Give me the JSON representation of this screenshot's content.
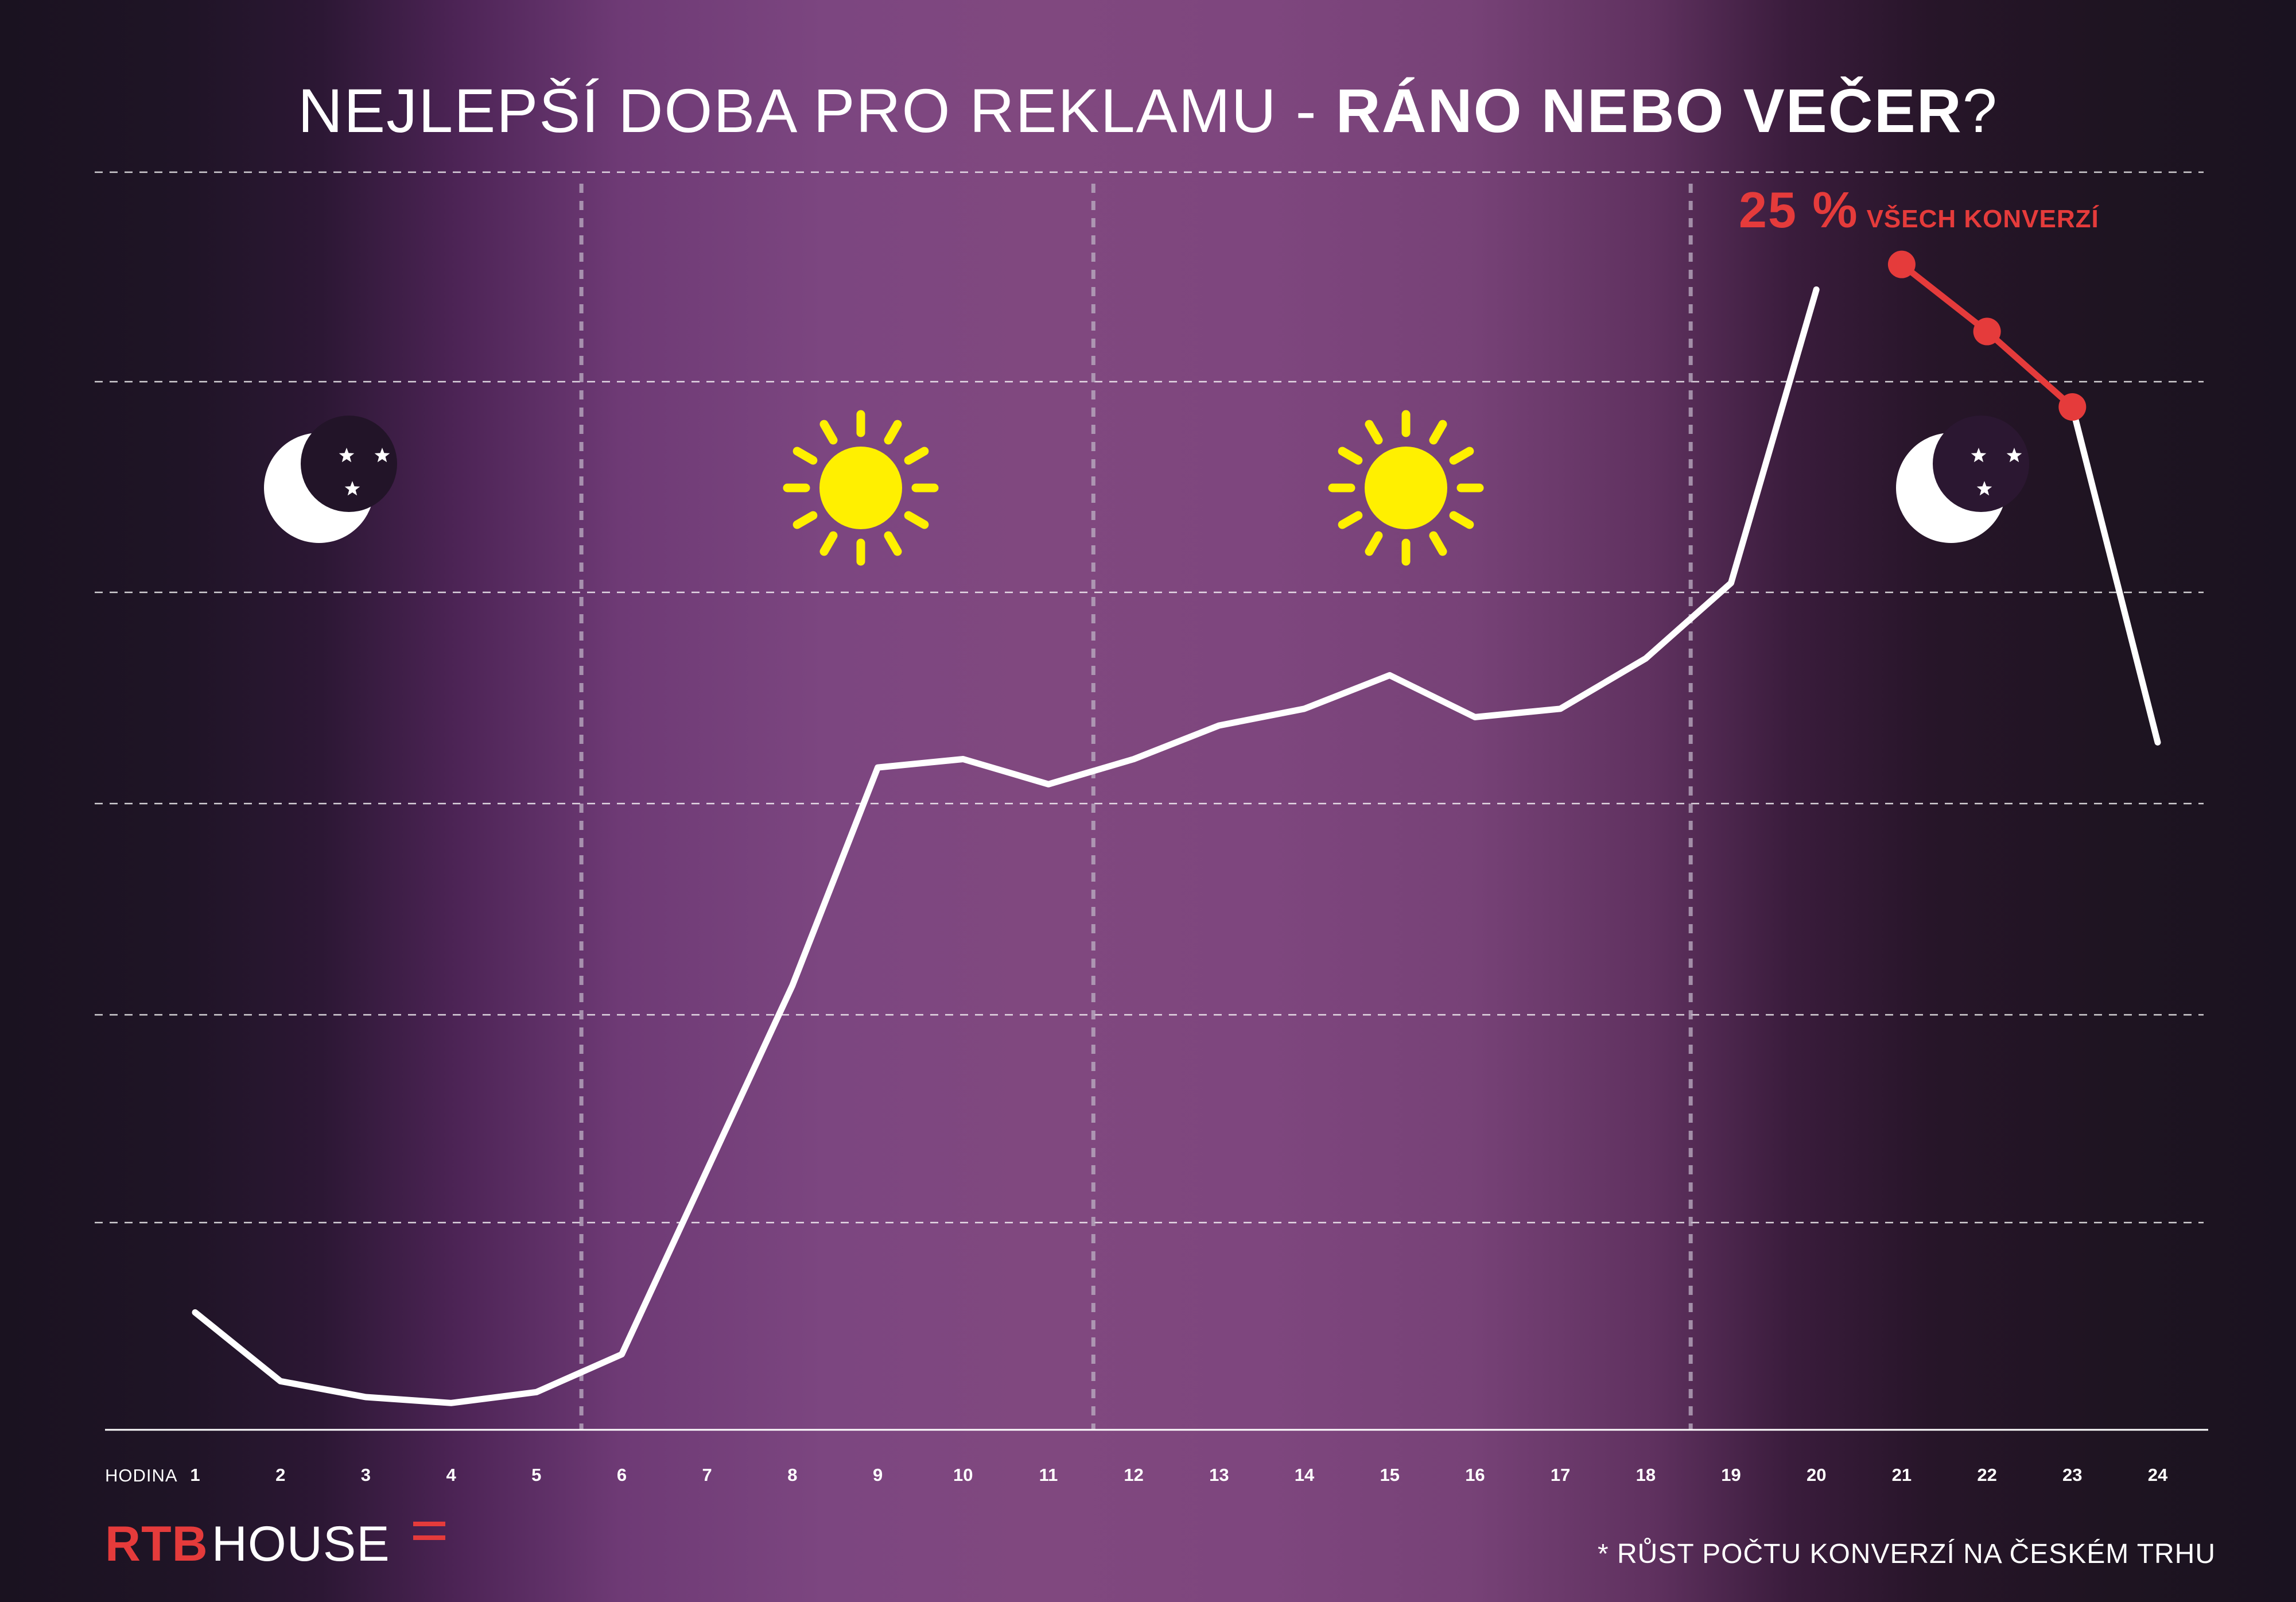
{
  "title": {
    "light": "NEJLEPŠÍ DOBA PRO REKLAMU - ",
    "bold": "RÁNO NEBO VEČER",
    "end": "?"
  },
  "peak_label": {
    "value": "25 %",
    "text": "VŠECH KONVERZÍ"
  },
  "x_caption": "HODINA",
  "footnote": "* RŮST POČTU KONVERZÍ NA ČESKÉM TRHU",
  "logo": {
    "rtb": "RTB",
    "house": "HOUSE"
  },
  "colors": {
    "line": "#ffffff",
    "highlight": "#e53b3b",
    "sun": "#fff000",
    "grid": "#ffffff"
  },
  "icons": [
    "moon-stars-icon",
    "sun-icon",
    "sun-icon",
    "moon-stars-icon"
  ],
  "chart_data": {
    "type": "line",
    "xlabel": "HODINA",
    "ylabel": "",
    "x": [
      "1",
      "2",
      "3",
      "4",
      "5",
      "6",
      "7",
      "8",
      "9",
      "10",
      "11",
      "12",
      "13",
      "14",
      "15",
      "16",
      "17",
      "18",
      "19",
      "20",
      "21",
      "22",
      "23",
      "24"
    ],
    "series": [
      {
        "values": [
          14.0,
          5.8,
          3.9,
          3.2,
          4.5,
          9.0,
          31,
          53,
          79,
          80,
          77,
          80,
          84,
          86,
          90,
          85,
          86,
          92,
          101,
          136,
          139,
          131,
          122,
          82
        ]
      }
    ],
    "highlighted_x": [
      "21",
      "22",
      "23"
    ],
    "highlight_annotation": "25 % VŠECH KONVERZÍ",
    "ylim": [
      0,
      150
    ],
    "grid": true,
    "period_dividers_after_x": [
      "5",
      "11",
      "18"
    ]
  }
}
